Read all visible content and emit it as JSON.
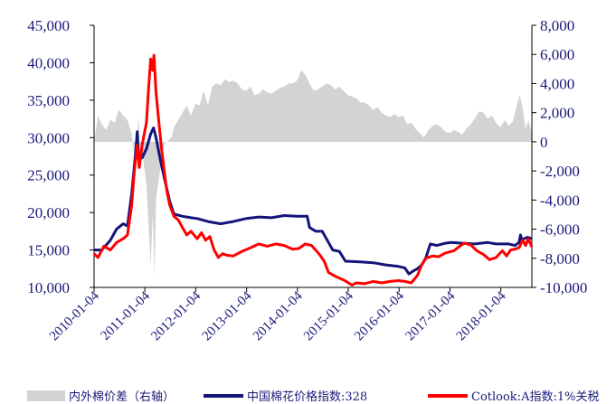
{
  "colors": {
    "spread": "#d3d3d3",
    "china_index": "#14147a",
    "cotlook": "#ff0000",
    "axis_text": "#1a1a7a"
  },
  "legend": {
    "spread": "内外棉价差（右轴）",
    "china_index": "中国棉花价格指数:328",
    "cotlook": "Cotlook:A指数:1%关税"
  },
  "chart_data": {
    "type": "line",
    "x_axis": {
      "type": "date",
      "range": [
        "2010-01-04",
        "2018-08-15"
      ],
      "tick_labels": [
        "2010-01-04",
        "2011-01-04",
        "2012-01-04",
        "2013-01-04",
        "2014-01-04",
        "2015-01-04",
        "2016-01-04",
        "2017-01-04",
        "2018-01-04"
      ]
    },
    "y_left": {
      "ylim": [
        10000,
        45000
      ],
      "tick_labels": [
        "10,000",
        "15,000",
        "20,000",
        "25,000",
        "30,000",
        "35,000",
        "40,000",
        "45,000"
      ]
    },
    "y_right": {
      "ylim": [
        -10000,
        8000
      ],
      "tick_labels": [
        "-10,000",
        "-8,000",
        "-6,000",
        "-4,000",
        "-2,000",
        "0",
        "2,000",
        "4,000",
        "6,000",
        "8,000"
      ]
    },
    "series": [
      {
        "name": "中国棉花价格指数:328",
        "axis": "left",
        "style": "line",
        "points": [
          [
            "2010-01-04",
            15000
          ],
          [
            "2010-03-01",
            15000
          ],
          [
            "2010-05-01",
            16300
          ],
          [
            "2010-06-15",
            17800
          ],
          [
            "2010-08-01",
            18500
          ],
          [
            "2010-09-01",
            18200
          ],
          [
            "2010-10-01",
            22500
          ],
          [
            "2010-11-01",
            28500
          ],
          [
            "2010-11-10",
            30800
          ],
          [
            "2010-11-20",
            27500
          ],
          [
            "2010-12-15",
            27300
          ],
          [
            "2011-01-15",
            28500
          ],
          [
            "2011-02-15",
            30500
          ],
          [
            "2011-03-07",
            31300
          ],
          [
            "2011-03-25",
            30000
          ],
          [
            "2011-04-25",
            27000
          ],
          [
            "2011-05-25",
            24500
          ],
          [
            "2011-07-01",
            21500
          ],
          [
            "2011-08-01",
            19800
          ],
          [
            "2011-10-01",
            19500
          ],
          [
            "2011-12-01",
            19300
          ],
          [
            "2012-01-15",
            19200
          ],
          [
            "2012-04-01",
            18800
          ],
          [
            "2012-07-01",
            18500
          ],
          [
            "2012-10-01",
            18800
          ],
          [
            "2013-01-01",
            19200
          ],
          [
            "2013-04-01",
            19400
          ],
          [
            "2013-07-01",
            19300
          ],
          [
            "2013-10-01",
            19600
          ],
          [
            "2014-01-01",
            19500
          ],
          [
            "2014-03-15",
            19500
          ],
          [
            "2014-04-01",
            18000
          ],
          [
            "2014-05-15",
            17500
          ],
          [
            "2014-07-01",
            17500
          ],
          [
            "2014-08-15",
            16000
          ],
          [
            "2014-09-15",
            15000
          ],
          [
            "2014-11-01",
            14800
          ],
          [
            "2014-12-15",
            13500
          ],
          [
            "2015-04-01",
            13400
          ],
          [
            "2015-07-01",
            13300
          ],
          [
            "2015-10-01",
            13000
          ],
          [
            "2016-01-01",
            12800
          ],
          [
            "2016-02-15",
            12600
          ],
          [
            "2016-03-15",
            11800
          ],
          [
            "2016-04-15",
            12200
          ],
          [
            "2016-05-15",
            12500
          ],
          [
            "2016-06-15",
            13000
          ],
          [
            "2016-07-15",
            14000
          ],
          [
            "2016-08-15",
            15800
          ],
          [
            "2016-10-01",
            15600
          ],
          [
            "2016-12-01",
            15900
          ],
          [
            "2017-01-15",
            16000
          ],
          [
            "2017-04-01",
            15900
          ],
          [
            "2017-07-01",
            15800
          ],
          [
            "2017-10-01",
            16000
          ],
          [
            "2017-12-01",
            15800
          ],
          [
            "2018-01-15",
            15800
          ],
          [
            "2018-03-01",
            15800
          ],
          [
            "2018-04-15",
            15600
          ],
          [
            "2018-05-15",
            16000
          ],
          [
            "2018-05-25",
            17000
          ],
          [
            "2018-06-05",
            16300
          ],
          [
            "2018-06-20",
            16500
          ],
          [
            "2018-07-15",
            16700
          ],
          [
            "2018-08-15",
            16500
          ]
        ]
      },
      {
        "name": "Cotlook:A指数:1%关税",
        "axis": "left",
        "style": "line",
        "points": [
          [
            "2010-01-04",
            14500
          ],
          [
            "2010-02-01",
            14000
          ],
          [
            "2010-03-15",
            15500
          ],
          [
            "2010-05-01",
            15000
          ],
          [
            "2010-06-15",
            16000
          ],
          [
            "2010-08-01",
            16500
          ],
          [
            "2010-09-01",
            17000
          ],
          [
            "2010-10-01",
            21000
          ],
          [
            "2010-10-20",
            25500
          ],
          [
            "2010-11-10",
            29000
          ],
          [
            "2010-11-25",
            26000
          ],
          [
            "2010-12-15",
            29000
          ],
          [
            "2011-01-15",
            32000
          ],
          [
            "2011-02-01",
            37000
          ],
          [
            "2011-02-15",
            40500
          ],
          [
            "2011-03-01",
            39000
          ],
          [
            "2011-03-10",
            41000
          ],
          [
            "2011-03-25",
            36000
          ],
          [
            "2011-04-15",
            32000
          ],
          [
            "2011-05-01",
            29000
          ],
          [
            "2011-05-20",
            26000
          ],
          [
            "2011-06-10",
            23000
          ],
          [
            "2011-07-01",
            21000
          ],
          [
            "2011-08-01",
            19500
          ],
          [
            "2011-09-01",
            19000
          ],
          [
            "2011-10-01",
            18000
          ],
          [
            "2011-11-01",
            17000
          ],
          [
            "2011-12-01",
            17500
          ],
          [
            "2012-01-15",
            16500
          ],
          [
            "2012-02-15",
            17300
          ],
          [
            "2012-03-15",
            16300
          ],
          [
            "2012-04-15",
            16800
          ],
          [
            "2012-05-15",
            15000
          ],
          [
            "2012-06-15",
            14000
          ],
          [
            "2012-07-15",
            14500
          ],
          [
            "2012-08-15",
            14300
          ],
          [
            "2012-10-01",
            14200
          ],
          [
            "2012-12-01",
            14800
          ],
          [
            "2013-02-01",
            15300
          ],
          [
            "2013-04-01",
            15800
          ],
          [
            "2013-06-01",
            15500
          ],
          [
            "2013-08-01",
            15800
          ],
          [
            "2013-10-01",
            15600
          ],
          [
            "2013-12-01",
            15100
          ],
          [
            "2014-01-15",
            15200
          ],
          [
            "2014-03-01",
            15800
          ],
          [
            "2014-04-15",
            15600
          ],
          [
            "2014-05-15",
            15000
          ],
          [
            "2014-06-15",
            14300
          ],
          [
            "2014-07-15",
            13500
          ],
          [
            "2014-08-15",
            12000
          ],
          [
            "2014-10-01",
            11500
          ],
          [
            "2014-12-01",
            11000
          ],
          [
            "2015-02-01",
            10300
          ],
          [
            "2015-03-01",
            10600
          ],
          [
            "2015-05-01",
            10500
          ],
          [
            "2015-07-01",
            10800
          ],
          [
            "2015-09-01",
            10600
          ],
          [
            "2015-11-01",
            10800
          ],
          [
            "2016-01-01",
            10900
          ],
          [
            "2016-02-15",
            10800
          ],
          [
            "2016-04-01",
            10600
          ],
          [
            "2016-05-15",
            11600
          ],
          [
            "2016-06-15",
            13000
          ],
          [
            "2016-07-15",
            13900
          ],
          [
            "2016-09-01",
            14200
          ],
          [
            "2016-10-15",
            14100
          ],
          [
            "2016-12-01",
            14600
          ],
          [
            "2017-02-01",
            14900
          ],
          [
            "2017-03-15",
            15500
          ],
          [
            "2017-04-15",
            15900
          ],
          [
            "2017-06-01",
            15700
          ],
          [
            "2017-07-15",
            14900
          ],
          [
            "2017-09-01",
            14400
          ],
          [
            "2017-10-15",
            13700
          ],
          [
            "2017-12-01",
            14000
          ],
          [
            "2018-01-15",
            14900
          ],
          [
            "2018-02-15",
            14200
          ],
          [
            "2018-03-15",
            15000
          ],
          [
            "2018-04-15",
            15100
          ],
          [
            "2018-05-15",
            15300
          ],
          [
            "2018-06-10",
            16300
          ],
          [
            "2018-07-01",
            15600
          ],
          [
            "2018-07-20",
            16500
          ],
          [
            "2018-08-15",
            15400
          ]
        ]
      },
      {
        "name": "内外棉价差（右轴）",
        "axis": "right",
        "style": "area",
        "points": [
          [
            "2010-01-04",
            0
          ],
          [
            "2010-02-01",
            1800
          ],
          [
            "2010-03-01",
            1200
          ],
          [
            "2010-04-01",
            800
          ],
          [
            "2010-05-01",
            1500
          ],
          [
            "2010-06-01",
            1300
          ],
          [
            "2010-07-01",
            2200
          ],
          [
            "2010-08-01",
            1800
          ],
          [
            "2010-09-01",
            1500
          ],
          [
            "2010-10-01",
            600
          ],
          [
            "2010-10-20",
            -1000
          ],
          [
            "2010-11-10",
            500
          ],
          [
            "2010-11-20",
            1800
          ],
          [
            "2010-12-01",
            -1500
          ],
          [
            "2010-12-20",
            -1000
          ],
          [
            "2011-01-15",
            -3000
          ],
          [
            "2011-02-01",
            -6000
          ],
          [
            "2011-02-15",
            -8500
          ],
          [
            "2011-03-01",
            -5000
          ],
          [
            "2011-03-15",
            -9300
          ],
          [
            "2011-03-25",
            -4000
          ],
          [
            "2011-04-15",
            -2500
          ],
          [
            "2011-05-01",
            -1500
          ],
          [
            "2011-05-15",
            -500
          ],
          [
            "2011-06-01",
            0
          ],
          [
            "2011-06-15",
            0
          ],
          [
            "2011-07-01",
            200
          ],
          [
            "2011-07-15",
            300
          ],
          [
            "2011-08-01",
            1000
          ],
          [
            "2011-09-01",
            1500
          ],
          [
            "2011-10-01",
            2000
          ],
          [
            "2011-11-01",
            2500
          ],
          [
            "2011-12-01",
            1800
          ],
          [
            "2012-01-01",
            2600
          ],
          [
            "2012-02-01",
            2500
          ],
          [
            "2012-03-01",
            3500
          ],
          [
            "2012-04-01",
            2500
          ],
          [
            "2012-05-01",
            3800
          ],
          [
            "2012-06-01",
            4000
          ],
          [
            "2012-07-01",
            3900
          ],
          [
            "2012-08-01",
            4300
          ],
          [
            "2012-09-01",
            4100
          ],
          [
            "2012-10-01",
            4200
          ],
          [
            "2012-11-01",
            4000
          ],
          [
            "2012-12-01",
            3600
          ],
          [
            "2013-01-01",
            3500
          ],
          [
            "2013-02-01",
            3800
          ],
          [
            "2013-03-01",
            3200
          ],
          [
            "2013-04-01",
            3300
          ],
          [
            "2013-05-01",
            3600
          ],
          [
            "2013-06-01",
            3400
          ],
          [
            "2013-07-01",
            3300
          ],
          [
            "2013-08-01",
            3500
          ],
          [
            "2013-09-01",
            3700
          ],
          [
            "2013-10-01",
            3800
          ],
          [
            "2013-11-01",
            4000
          ],
          [
            "2013-12-01",
            4000
          ],
          [
            "2014-01-01",
            4200
          ],
          [
            "2014-02-01",
            4900
          ],
          [
            "2014-03-01",
            4600
          ],
          [
            "2014-04-01",
            4000
          ],
          [
            "2014-05-01",
            3500
          ],
          [
            "2014-06-01",
            3600
          ],
          [
            "2014-07-01",
            3800
          ],
          [
            "2014-08-01",
            4000
          ],
          [
            "2014-09-01",
            3900
          ],
          [
            "2014-10-01",
            3600
          ],
          [
            "2014-11-01",
            3800
          ],
          [
            "2014-12-01",
            3500
          ],
          [
            "2015-01-01",
            3200
          ],
          [
            "2015-02-01",
            3100
          ],
          [
            "2015-03-01",
            3000
          ],
          [
            "2015-04-01",
            2700
          ],
          [
            "2015-05-01",
            2700
          ],
          [
            "2015-06-01",
            2500
          ],
          [
            "2015-07-01",
            2200
          ],
          [
            "2015-08-01",
            2400
          ],
          [
            "2015-09-01",
            2000
          ],
          [
            "2015-10-01",
            1800
          ],
          [
            "2015-11-01",
            1700
          ],
          [
            "2015-12-01",
            1900
          ],
          [
            "2016-01-01",
            1700
          ],
          [
            "2016-02-01",
            1800
          ],
          [
            "2016-03-01",
            1200
          ],
          [
            "2016-04-01",
            1300
          ],
          [
            "2016-05-01",
            900
          ],
          [
            "2016-06-01",
            600
          ],
          [
            "2016-07-01",
            300
          ],
          [
            "2016-08-01",
            800
          ],
          [
            "2016-09-01",
            1100
          ],
          [
            "2016-10-01",
            1200
          ],
          [
            "2016-11-01",
            1000
          ],
          [
            "2016-12-01",
            700
          ],
          [
            "2017-01-01",
            600
          ],
          [
            "2017-02-01",
            800
          ],
          [
            "2017-03-01",
            700
          ],
          [
            "2017-04-01",
            500
          ],
          [
            "2017-05-01",
            900
          ],
          [
            "2017-06-01",
            1200
          ],
          [
            "2017-07-01",
            1600
          ],
          [
            "2017-08-01",
            2100
          ],
          [
            "2017-09-01",
            2000
          ],
          [
            "2017-10-01",
            1600
          ],
          [
            "2017-11-01",
            1800
          ],
          [
            "2017-12-01",
            1300
          ],
          [
            "2018-01-01",
            1000
          ],
          [
            "2018-02-01",
            1500
          ],
          [
            "2018-03-01",
            1100
          ],
          [
            "2018-04-01",
            1400
          ],
          [
            "2018-05-01",
            2600
          ],
          [
            "2018-05-20",
            3200
          ],
          [
            "2018-06-10",
            2300
          ],
          [
            "2018-07-01",
            900
          ],
          [
            "2018-07-20",
            1500
          ],
          [
            "2018-08-15",
            600
          ]
        ]
      }
    ]
  }
}
